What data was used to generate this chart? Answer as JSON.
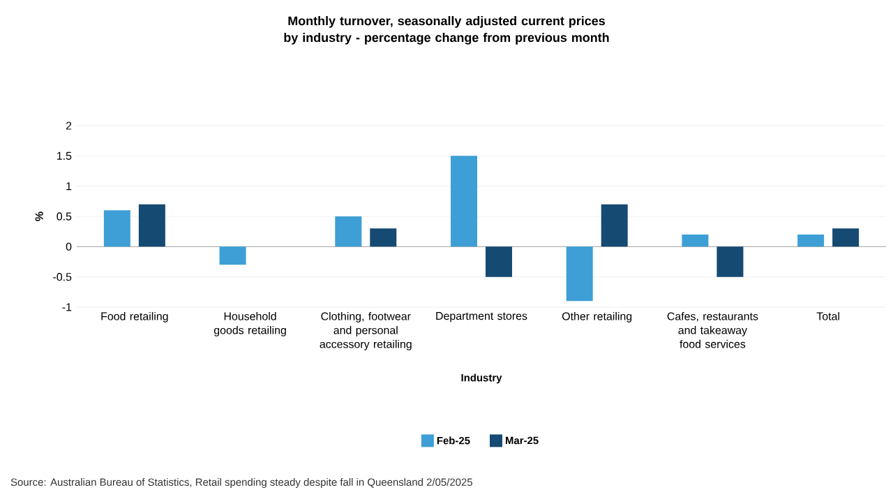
{
  "chart_data": {
    "type": "bar",
    "title": "Monthly turnover, seasonally adjusted current prices by industry - percentage change from previous month",
    "xlabel": "Industry",
    "ylabel": "%",
    "categories": [
      "Food retailing",
      "Household goods retailing",
      "Clothing, footwear and personal accessory retailing",
      "Department stores",
      "Other retailing",
      "Cafes, restaurants and takeaway food services",
      "Total"
    ],
    "series": [
      {
        "name": "Feb-25",
        "color": "#3d9fd6",
        "values": [
          0.6,
          -0.3,
          0.5,
          1.5,
          -0.9,
          0.2,
          0.2
        ]
      },
      {
        "name": "Mar-25",
        "color": "#154a73",
        "values": [
          0.7,
          0,
          0.3,
          -0.5,
          0.7,
          -0.5,
          0.3
        ]
      }
    ],
    "ylim": [
      -1,
      2
    ],
    "yticks": [
      -1,
      -0.5,
      0,
      0.5,
      1,
      1.5,
      2
    ],
    "grid": "y",
    "legend": "bottom",
    "annotations": [
      "Source: Australian Bureau of Statistics, Retail spending steady despite fall in Queensland 2/05/2025"
    ]
  }
}
